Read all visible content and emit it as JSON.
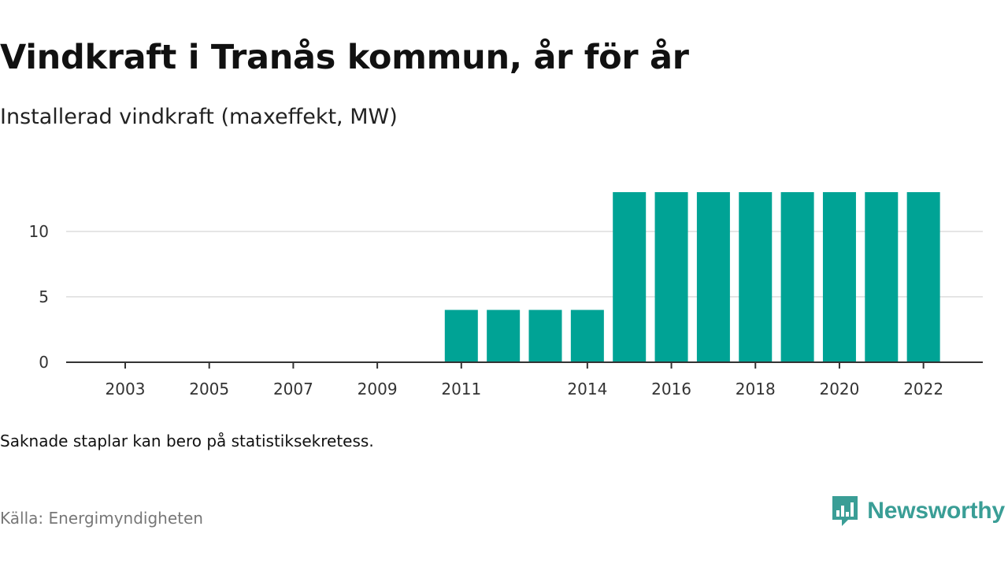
{
  "title": "Vindkraft i Tranås kommun, år för år",
  "subtitle": "Installerad vindkraft (maxeffekt, MW)",
  "note": "Saknade staplar kan bero på statistiksekretess.",
  "source": "Källa: Energimyndigheten",
  "brand": {
    "name": "Newsworthy",
    "icon": "newsworthy-logo-icon",
    "color": "#3a9e96"
  },
  "colors": {
    "bar": "#00a395",
    "grid": "#dddddd",
    "axis": "#333333"
  },
  "chart_data": {
    "type": "bar",
    "categories": [
      "2003",
      "2004",
      "2005",
      "2006",
      "2007",
      "2008",
      "2009",
      "2010",
      "2011",
      "2012",
      "2013",
      "2014",
      "2015",
      "2016",
      "2017",
      "2018",
      "2019",
      "2020",
      "2021",
      "2022"
    ],
    "values": [
      0,
      0,
      0,
      0,
      0,
      0,
      0,
      0,
      4,
      4,
      4,
      4,
      13,
      13,
      13,
      13,
      13,
      13,
      13,
      13
    ],
    "x_tick_labels": [
      "2003",
      "2005",
      "2007",
      "2009",
      "2011",
      "2014",
      "2016",
      "2018",
      "2020",
      "2022"
    ],
    "y_ticks": [
      0,
      5,
      10
    ],
    "ylim": [
      0,
      13
    ],
    "xlabel": "",
    "ylabel": "",
    "grid": true,
    "legend": "none"
  }
}
